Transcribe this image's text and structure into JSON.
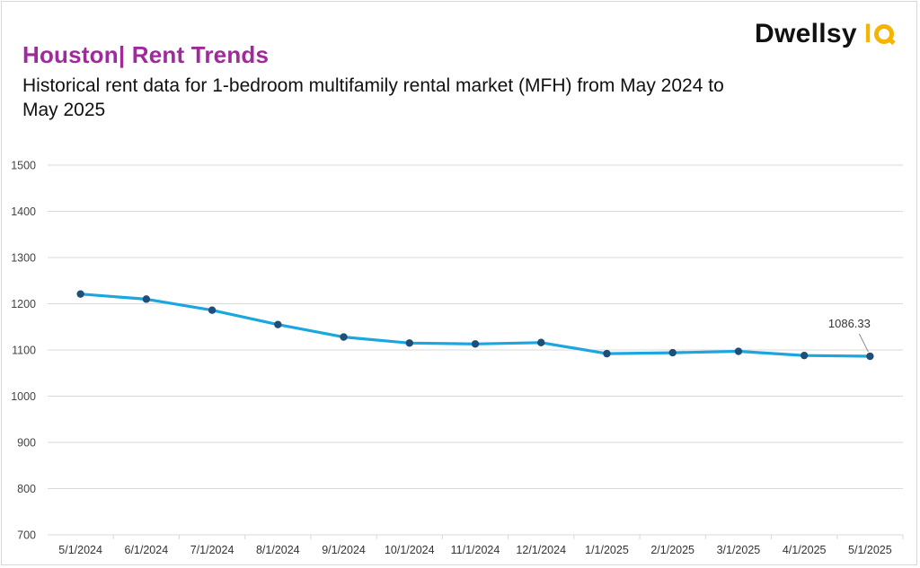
{
  "brand": {
    "name": "Dwellsy",
    "suffix": "IQ",
    "accent": "#f4b400"
  },
  "header": {
    "title": "Houston| Rent Trends",
    "subtitle": "Historical rent data for 1-bedroom multifamily rental market (MFH) from May 2024 to May 2025"
  },
  "colors": {
    "title": "#a0299b",
    "line": "#1aa7e0",
    "marker": "#1f4e79",
    "grid": "#d9d9d9"
  },
  "chart_data": {
    "type": "line",
    "title": "Houston| Rent Trends",
    "subtitle": "Historical rent data for 1-bedroom multifamily rental market (MFH) from May 2024 to May 2025",
    "xlabel": "",
    "ylabel": "",
    "categories": [
      "5/1/2024",
      "6/1/2024",
      "7/1/2024",
      "8/1/2024",
      "9/1/2024",
      "10/1/2024",
      "11/1/2024",
      "12/1/2024",
      "1/1/2025",
      "2/1/2025",
      "3/1/2025",
      "4/1/2025",
      "5/1/2025"
    ],
    "series": [
      {
        "values": [
          1221,
          1210,
          1186,
          1155,
          1128,
          1115,
          1113,
          1116,
          1092,
          1094,
          1097,
          1088,
          1086.33
        ]
      }
    ],
    "ylim": [
      700,
      1500
    ],
    "yticks": [
      700,
      800,
      900,
      1000,
      1100,
      1200,
      1300,
      1400,
      1500
    ],
    "grid": true,
    "annotations": [
      {
        "category": "5/1/2025",
        "text": "1086.33"
      }
    ]
  }
}
